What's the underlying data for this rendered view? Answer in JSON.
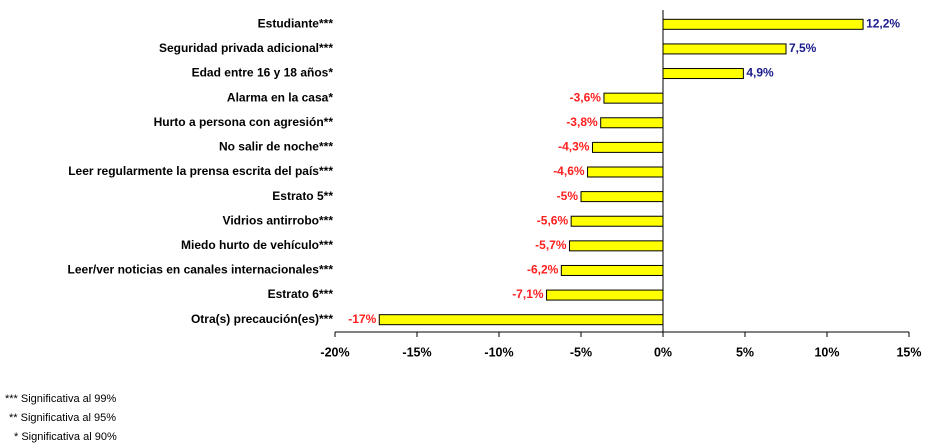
{
  "chart_data": {
    "type": "hbar",
    "categories": [
      "Estudiante***",
      "Seguridad privada adicional***",
      "Edad entre 16 y 18 años*",
      "Alarma en la casa*",
      "Hurto a persona con agresión**",
      "No salir de noche***",
      "Leer regularmente la prensa escrita del país***",
      "Estrato 5**",
      "Vidrios antirrobo***",
      "Miedo hurto de vehículo***",
      "Leer/ver noticias en canales internacionales***",
      "Estrato 6***",
      "Otra(s) precaución(es)***"
    ],
    "values": [
      12.2,
      7.5,
      4.9,
      -3.6,
      -3.8,
      -4.3,
      -4.6,
      -5,
      -5.6,
      -5.7,
      -6.2,
      -7.1,
      -17.3
    ],
    "value_labels": [
      "12,2%",
      "7,5%",
      "4,9%",
      "-3,6%",
      "-3,8%",
      "-4,3%",
      "-4,6%",
      "-5%",
      "-5,6%",
      "-5,7%",
      "-6,2%",
      "-7,1%",
      "-17%"
    ],
    "color": "#ffff00",
    "positive_label_color": "#1a1a8c",
    "negative_label_color": "#ff2020",
    "xlim": [
      -20,
      15
    ],
    "xticks": [
      {
        "value": -20,
        "label": "-20%"
      },
      {
        "value": -15,
        "label": "-15%"
      },
      {
        "value": -10,
        "label": "-10%"
      },
      {
        "value": -5,
        "label": "-5%"
      },
      {
        "value": 0,
        "label": "0%"
      },
      {
        "value": 5,
        "label": "5%"
      },
      {
        "value": 10,
        "label": "10%"
      },
      {
        "value": 15,
        "label": "15%"
      }
    ],
    "footnotes": [
      "*** Significativa al 99%",
      "** Significativa al 95%",
      "* Significativa al 90%"
    ]
  }
}
